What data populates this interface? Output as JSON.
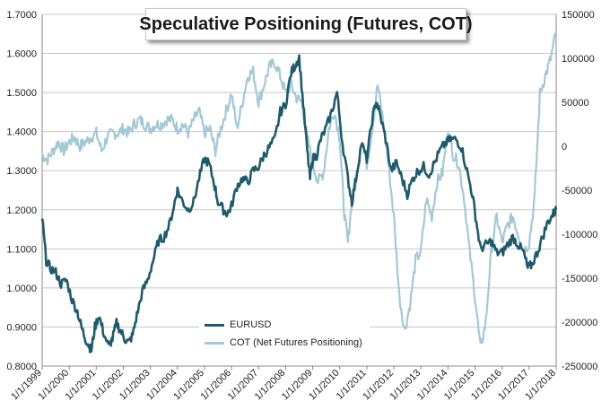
{
  "title": "Speculative Positioning (Futures, COT)",
  "colors": {
    "eurusd": "#1f5a6c",
    "cot": "#a3c9d6",
    "grid": "#c8c8c8",
    "axis": "#888888"
  },
  "chart_data": {
    "type": "line",
    "title": "Speculative Positioning (Futures, COT)",
    "grid": true,
    "legend_placement": "bottom-center",
    "x_axis": {
      "tick_labels": [
        "1/1/1999",
        "1/1/2000",
        "1/1/2001",
        "1/1/2002",
        "1/1/2003",
        "1/1/2004",
        "1/1/2005",
        "1/1/2006",
        "1/1/2007",
        "1/1/2008",
        "1/1/2009",
        "1/1/2010",
        "1/1/2011",
        "1/1/2012",
        "1/1/2013",
        "1/1/2014",
        "1/1/2015",
        "1/1/2016",
        "1/1/2017",
        "1/1/2018"
      ],
      "range": [
        1999.0,
        2018.0
      ]
    },
    "y_left": {
      "ylim": [
        0.8,
        1.7
      ],
      "tick_labels": [
        "0.8000",
        "0.9000",
        "1.0000",
        "1.1000",
        "1.2000",
        "1.3000",
        "1.4000",
        "1.5000",
        "1.6000",
        "1.7000"
      ],
      "tick_values": [
        0.8,
        0.9,
        1.0,
        1.1,
        1.2,
        1.3,
        1.4,
        1.5,
        1.6,
        1.7
      ]
    },
    "y_right": {
      "ylim": [
        -250000,
        150000
      ],
      "tick_labels": [
        "-250000",
        "-200000",
        "-150000",
        "-100000",
        "-50000",
        "0",
        "50000",
        "100000",
        "150000"
      ],
      "tick_values": [
        -250000,
        -200000,
        -150000,
        -100000,
        -50000,
        0,
        50000,
        100000,
        150000
      ]
    },
    "series": [
      {
        "name": "EURUSD",
        "axis": "left",
        "x": [
          1999.0,
          1999.15,
          1999.3,
          1999.5,
          1999.7,
          1999.9,
          2000.1,
          2000.3,
          2000.45,
          2000.6,
          2000.75,
          2000.82,
          2000.95,
          2001.1,
          2001.25,
          2001.45,
          2001.6,
          2001.75,
          2001.9,
          2002.05,
          2002.2,
          2002.35,
          2002.5,
          2002.7,
          2002.9,
          2003.1,
          2003.3,
          2003.5,
          2003.7,
          2003.9,
          2004.0,
          2004.2,
          2004.4,
          2004.6,
          2004.8,
          2005.0,
          2005.15,
          2005.35,
          2005.5,
          2005.7,
          2005.85,
          2006.0,
          2006.2,
          2006.4,
          2006.6,
          2006.8,
          2007.0,
          2007.2,
          2007.4,
          2007.6,
          2007.8,
          2008.0,
          2008.2,
          2008.35,
          2008.5,
          2008.65,
          2008.8,
          2008.9,
          2009.0,
          2009.15,
          2009.3,
          2009.5,
          2009.7,
          2009.9,
          2010.1,
          2010.3,
          2010.45,
          2010.6,
          2010.8,
          2011.0,
          2011.2,
          2011.35,
          2011.5,
          2011.7,
          2011.9,
          2012.1,
          2012.3,
          2012.5,
          2012.7,
          2012.9,
          2013.1,
          2013.3,
          2013.5,
          2013.7,
          2013.9,
          2014.1,
          2014.3,
          2014.5,
          2014.7,
          2014.9,
          2015.05,
          2015.2,
          2015.4,
          2015.6,
          2015.8,
          2016.0,
          2016.2,
          2016.4,
          2016.6,
          2016.8,
          2016.95,
          2017.1,
          2017.3,
          2017.5,
          2017.7,
          2017.9,
          2018.0
        ],
        "y": [
          1.18,
          1.07,
          1.05,
          1.04,
          1.01,
          1.02,
          0.97,
          0.94,
          0.9,
          0.87,
          0.85,
          0.84,
          0.9,
          0.93,
          0.89,
          0.85,
          0.87,
          0.91,
          0.89,
          0.87,
          0.86,
          0.88,
          0.93,
          0.99,
          1.02,
          1.07,
          1.12,
          1.13,
          1.16,
          1.22,
          1.25,
          1.22,
          1.2,
          1.22,
          1.28,
          1.33,
          1.32,
          1.27,
          1.22,
          1.2,
          1.19,
          1.21,
          1.26,
          1.28,
          1.27,
          1.3,
          1.31,
          1.34,
          1.36,
          1.38,
          1.45,
          1.47,
          1.55,
          1.57,
          1.59,
          1.47,
          1.35,
          1.28,
          1.33,
          1.34,
          1.38,
          1.41,
          1.45,
          1.5,
          1.37,
          1.28,
          1.22,
          1.28,
          1.37,
          1.33,
          1.43,
          1.48,
          1.44,
          1.38,
          1.3,
          1.32,
          1.28,
          1.24,
          1.28,
          1.3,
          1.31,
          1.29,
          1.32,
          1.35,
          1.37,
          1.38,
          1.38,
          1.36,
          1.3,
          1.24,
          1.17,
          1.1,
          1.11,
          1.12,
          1.09,
          1.09,
          1.11,
          1.13,
          1.11,
          1.09,
          1.05,
          1.06,
          1.09,
          1.13,
          1.17,
          1.19,
          1.2
        ]
      },
      {
        "name": "COT (Net Futures Positioning)",
        "axis": "right",
        "x": [
          1999.0,
          1999.2,
          1999.4,
          1999.6,
          1999.8,
          2000.0,
          2000.2,
          2000.4,
          2000.6,
          2000.8,
          2001.0,
          2001.2,
          2001.4,
          2001.6,
          2001.8,
          2002.0,
          2002.2,
          2002.4,
          2002.6,
          2002.8,
          2003.0,
          2003.2,
          2003.4,
          2003.6,
          2003.8,
          2004.0,
          2004.2,
          2004.4,
          2004.6,
          2004.8,
          2005.0,
          2005.2,
          2005.4,
          2005.6,
          2005.8,
          2006.0,
          2006.2,
          2006.4,
          2006.6,
          2006.8,
          2007.0,
          2007.2,
          2007.4,
          2007.6,
          2007.8,
          2008.0,
          2008.2,
          2008.4,
          2008.6,
          2008.8,
          2009.0,
          2009.2,
          2009.4,
          2009.6,
          2009.8,
          2010.0,
          2010.15,
          2010.3,
          2010.45,
          2010.6,
          2010.8,
          2011.0,
          2011.2,
          2011.4,
          2011.6,
          2011.8,
          2012.0,
          2012.2,
          2012.4,
          2012.6,
          2012.8,
          2013.0,
          2013.2,
          2013.4,
          2013.6,
          2013.8,
          2014.0,
          2014.2,
          2014.4,
          2014.6,
          2014.8,
          2015.0,
          2015.2,
          2015.4,
          2015.6,
          2015.8,
          2016.0,
          2016.2,
          2016.4,
          2016.6,
          2016.8,
          2017.0,
          2017.2,
          2017.4,
          2017.6,
          2017.8,
          2018.0
        ],
        "y": [
          -10000,
          -15000,
          -5000,
          5000,
          -5000,
          5000,
          10000,
          0,
          5000,
          10000,
          15000,
          -5000,
          10000,
          15000,
          15000,
          20000,
          15000,
          25000,
          30000,
          25000,
          20000,
          25000,
          25000,
          30000,
          30000,
          20000,
          25000,
          15000,
          30000,
          40000,
          15000,
          20000,
          -5000,
          20000,
          40000,
          60000,
          20000,
          50000,
          80000,
          85000,
          50000,
          70000,
          90000,
          95000,
          80000,
          60000,
          70000,
          55000,
          50000,
          10000,
          -20000,
          -40000,
          -30000,
          20000,
          40000,
          10000,
          -70000,
          -110000,
          -60000,
          -40000,
          10000,
          -20000,
          20000,
          70000,
          30000,
          -20000,
          -80000,
          -170000,
          -210000,
          -180000,
          -130000,
          -120000,
          -60000,
          -80000,
          -40000,
          -30000,
          20000,
          -10000,
          -20000,
          -60000,
          -120000,
          -170000,
          -230000,
          -200000,
          -120000,
          -80000,
          -110000,
          -90000,
          -80000,
          -100000,
          -120000,
          -110000,
          -60000,
          60000,
          80000,
          100000,
          130000
        ]
      }
    ]
  }
}
